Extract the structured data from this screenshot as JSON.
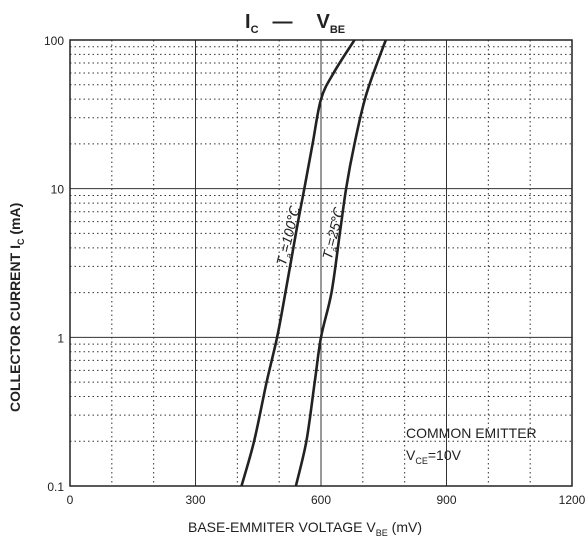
{
  "chart_data": {
    "type": "line",
    "title": {
      "main": "I",
      "main_sub": "C",
      "sep": "—",
      "var": "V",
      "var_sub": "BE"
    },
    "xlabel": {
      "main": "BASE-EMMITER VOLTAGE  V",
      "sub": "BE",
      "unit": " (mV)"
    },
    "ylabel": {
      "main": "COLLECTOR CURRENT   I",
      "sub": "C",
      "unit": "   (mA)"
    },
    "xlim": [
      0,
      1200
    ],
    "ylim": [
      0.1,
      100
    ],
    "yscale": "log",
    "grid": true,
    "x_ticks": [
      {
        "value": 0,
        "label": "0"
      },
      {
        "value": 300,
        "label": "300"
      },
      {
        "value": 600,
        "label": "600"
      },
      {
        "value": 900,
        "label": "900"
      },
      {
        "value": 1200,
        "label": "1200"
      }
    ],
    "y_ticks": [
      {
        "value": 0.1,
        "label": "0.1"
      },
      {
        "value": 1,
        "label": "1"
      },
      {
        "value": 10,
        "label": "10"
      },
      {
        "value": 100,
        "label": "100"
      }
    ],
    "series": [
      {
        "name": "Ta=100℃",
        "label": {
          "main": "T",
          "sub": "a",
          "rest": "=100℃"
        },
        "points": [
          [
            410,
            0.1
          ],
          [
            440,
            0.2
          ],
          [
            470,
            0.5
          ],
          [
            495,
            1
          ],
          [
            515,
            2
          ],
          [
            540,
            5
          ],
          [
            560,
            10
          ],
          [
            580,
            20
          ],
          [
            600,
            40
          ],
          [
            630,
            60
          ],
          [
            680,
            100
          ]
        ]
      },
      {
        "name": "Ta=25℃",
        "label": {
          "main": "T",
          "sub": "a",
          "rest": "=25℃"
        },
        "points": [
          [
            540,
            0.1
          ],
          [
            565,
            0.2
          ],
          [
            585,
            0.5
          ],
          [
            600,
            1
          ],
          [
            625,
            2
          ],
          [
            645,
            5
          ],
          [
            660,
            10
          ],
          [
            680,
            20
          ],
          [
            705,
            40
          ],
          [
            730,
            65
          ],
          [
            755,
            100
          ]
        ]
      }
    ],
    "annotation": {
      "line1": "COMMON EMITTER",
      "line2_main": "V",
      "line2_sub": "CE",
      "line2_rest": "=10V"
    }
  }
}
